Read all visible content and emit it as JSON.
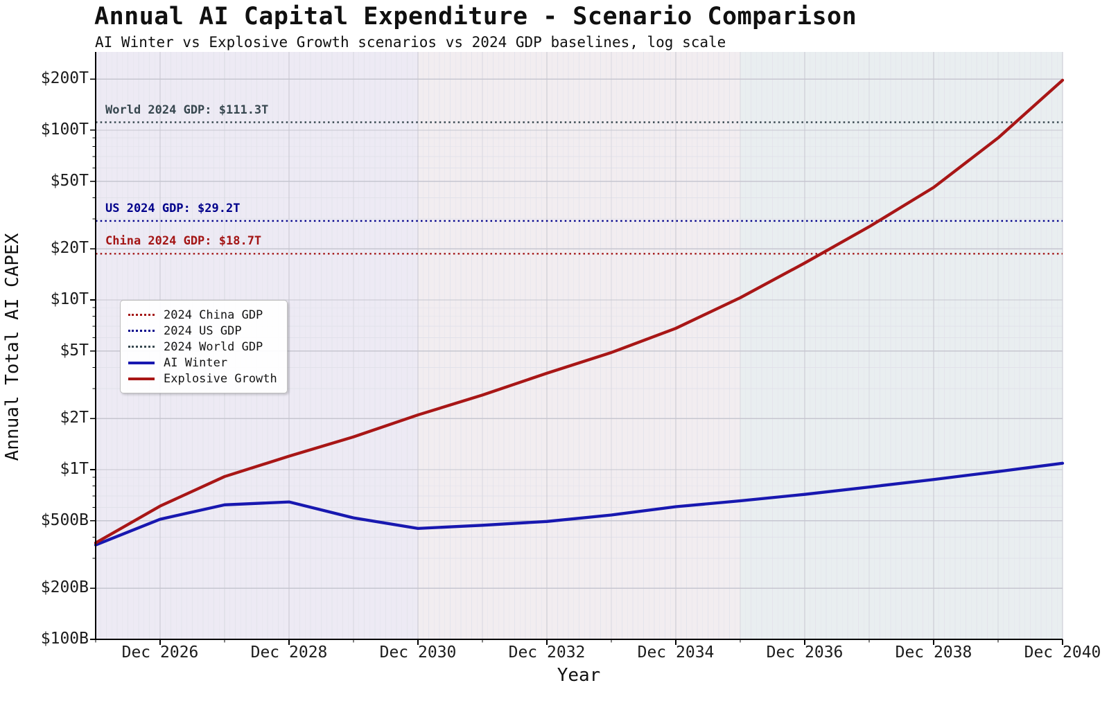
{
  "chart_data": {
    "type": "line",
    "title": "Annual AI Capital Expenditure - Scenario Comparison",
    "subtitle": "AI Winter vs Explosive Growth scenarios vs 2024 GDP baselines, log scale",
    "xlabel": "Year",
    "ylabel": "Annual Total AI CAPEX",
    "y_scale": "log",
    "y_unit": "$ billions",
    "ylim": [
      100,
      289000
    ],
    "x_categories": [
      "Dec 2025",
      "Dec 2026",
      "Dec 2027",
      "Dec 2028",
      "Dec 2029",
      "Dec 2030",
      "Dec 2031",
      "Dec 2032",
      "Dec 2033",
      "Dec 2034",
      "Dec 2035",
      "Dec 2036",
      "Dec 2037",
      "Dec 2038",
      "Dec 2039",
      "Dec 2040"
    ],
    "x_labeled_indices": [
      1,
      3,
      5,
      7,
      9,
      11,
      13,
      15
    ],
    "x_tick_labels": [
      "Dec 2026",
      "Dec 2028",
      "Dec 2030",
      "Dec 2032",
      "Dec 2034",
      "Dec 2036",
      "Dec 2038",
      "Dec 2040"
    ],
    "y_ticks": [
      {
        "value": 200000,
        "label": "$200T"
      },
      {
        "value": 100000,
        "label": "$100T"
      },
      {
        "value": 50000,
        "label": "$50T"
      },
      {
        "value": 20000,
        "label": "$20T"
      },
      {
        "value": 10000,
        "label": "$10T"
      },
      {
        "value": 5000,
        "label": "$5T"
      },
      {
        "value": 2000,
        "label": "$2T"
      },
      {
        "value": 1000,
        "label": "$1T"
      },
      {
        "value": 500,
        "label": "$500B"
      },
      {
        "value": 200,
        "label": "$200B"
      },
      {
        "value": 100,
        "label": "$100B"
      }
    ],
    "y_minor": [
      300,
      400,
      600,
      700,
      800,
      900,
      3000,
      4000,
      6000,
      7000,
      8000,
      9000,
      30000,
      40000,
      60000,
      70000,
      80000,
      90000
    ],
    "series": [
      {
        "name": "AI Winter",
        "color": "#1818b0",
        "values": [
          360,
          510,
          620,
          645,
          520,
          450,
          470,
          495,
          540,
          605,
          655,
          715,
          790,
          875,
          975,
          1090
        ]
      },
      {
        "name": "Explosive Growth",
        "color": "#a81616",
        "values": [
          370,
          610,
          910,
          1200,
          1560,
          2100,
          2750,
          3700,
          4900,
          6800,
          10300,
          16500,
          27000,
          46000,
          90000,
          197000
        ]
      }
    ],
    "baselines": [
      {
        "name": "china-gdp",
        "label": "China 2024 GDP: $18.7T",
        "value": 18700,
        "color": "#a31515"
      },
      {
        "name": "us-gdp",
        "label": "US 2024 GDP: $29.2T",
        "value": 29200,
        "color": "#00008b"
      },
      {
        "name": "world-gdp",
        "label": "World 2024 GDP: $111.3T",
        "value": 111300,
        "color": "#37474f"
      }
    ],
    "legend": {
      "position": "center-left",
      "entries": [
        {
          "label": "2024 China GDP",
          "color": "#a31515",
          "style": "dotted"
        },
        {
          "label": "2024 US GDP",
          "color": "#00008b",
          "style": "dotted"
        },
        {
          "label": "2024 World GDP",
          "color": "#37474f",
          "style": "dotted"
        },
        {
          "label": "AI Winter",
          "color": "#1818b0",
          "style": "solid"
        },
        {
          "label": "Explosive Growth",
          "color": "#a81616",
          "style": "solid"
        }
      ]
    },
    "bands": [
      {
        "from_index": 0,
        "to_index": 5,
        "color": "#edeaf4"
      },
      {
        "from_index": 5,
        "to_index": 10,
        "color": "#f2edf0"
      },
      {
        "from_index": 10,
        "to_index": 15,
        "color": "#e9eef0"
      }
    ],
    "grid": true
  }
}
